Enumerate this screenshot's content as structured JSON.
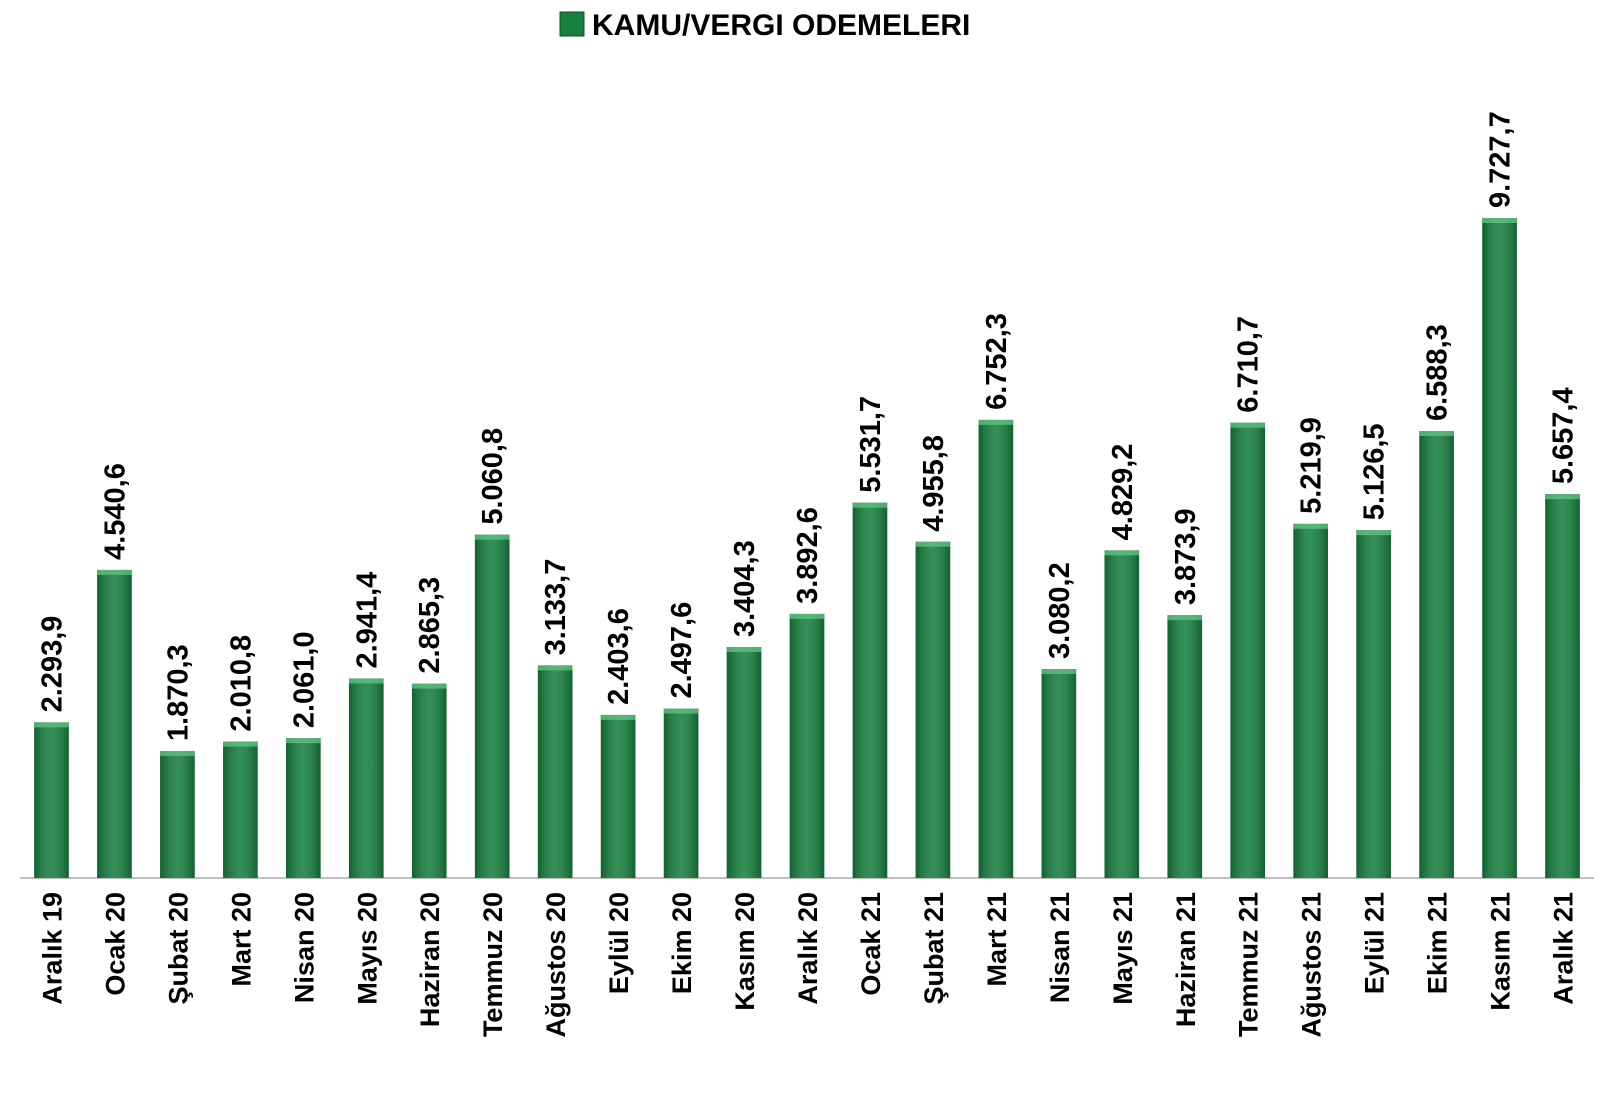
{
  "chart_data": {
    "type": "bar",
    "categories": [
      "Aralık 19",
      "Ocak 20",
      "Şubat 20",
      "Mart 20",
      "Nisan 20",
      "Mayıs 20",
      "Haziran 20",
      "Temmuz 20",
      "Ağustos 20",
      "Eylül 20",
      "Ekim 20",
      "Kasım 20",
      "Aralık 20",
      "Ocak 21",
      "Şubat 21",
      "Mart 21",
      "Nisan 21",
      "Mayıs 21",
      "Haziran 21",
      "Temmuz 21",
      "Ağustos 21",
      "Eylül 21",
      "Ekim 21",
      "Kasım 21",
      "Aralık 21"
    ],
    "series": [
      {
        "name": "KAMU/VERGI ODEMELERI",
        "color": "#17803f",
        "values": [
          2293.9,
          4540.6,
          1870.3,
          2010.8,
          2061.0,
          2941.4,
          2865.3,
          5060.8,
          3133.7,
          2403.6,
          2497.6,
          3404.3,
          3892.6,
          5531.7,
          4955.8,
          6752.3,
          3080.2,
          4829.2,
          3873.9,
          6710.7,
          5219.9,
          5126.5,
          6588.3,
          9727.7,
          5657.4
        ],
        "value_labels": [
          "2.293,9",
          "4.540,6",
          "1.870,3",
          "2.010,8",
          "2.061,0",
          "2.941,4",
          "2.865,3",
          "5.060,8",
          "3.133,7",
          "2.403,6",
          "2.497,6",
          "3.404,3",
          "3.892,6",
          "5.531,7",
          "4.955,8",
          "6.752,3",
          "3.080,2",
          "4.829,2",
          "3.873,9",
          "6.710,7",
          "5.219,9",
          "5.126,5",
          "6.588,3",
          "9.727,7",
          "5.657,4"
        ]
      }
    ],
    "legend": "top"
  }
}
